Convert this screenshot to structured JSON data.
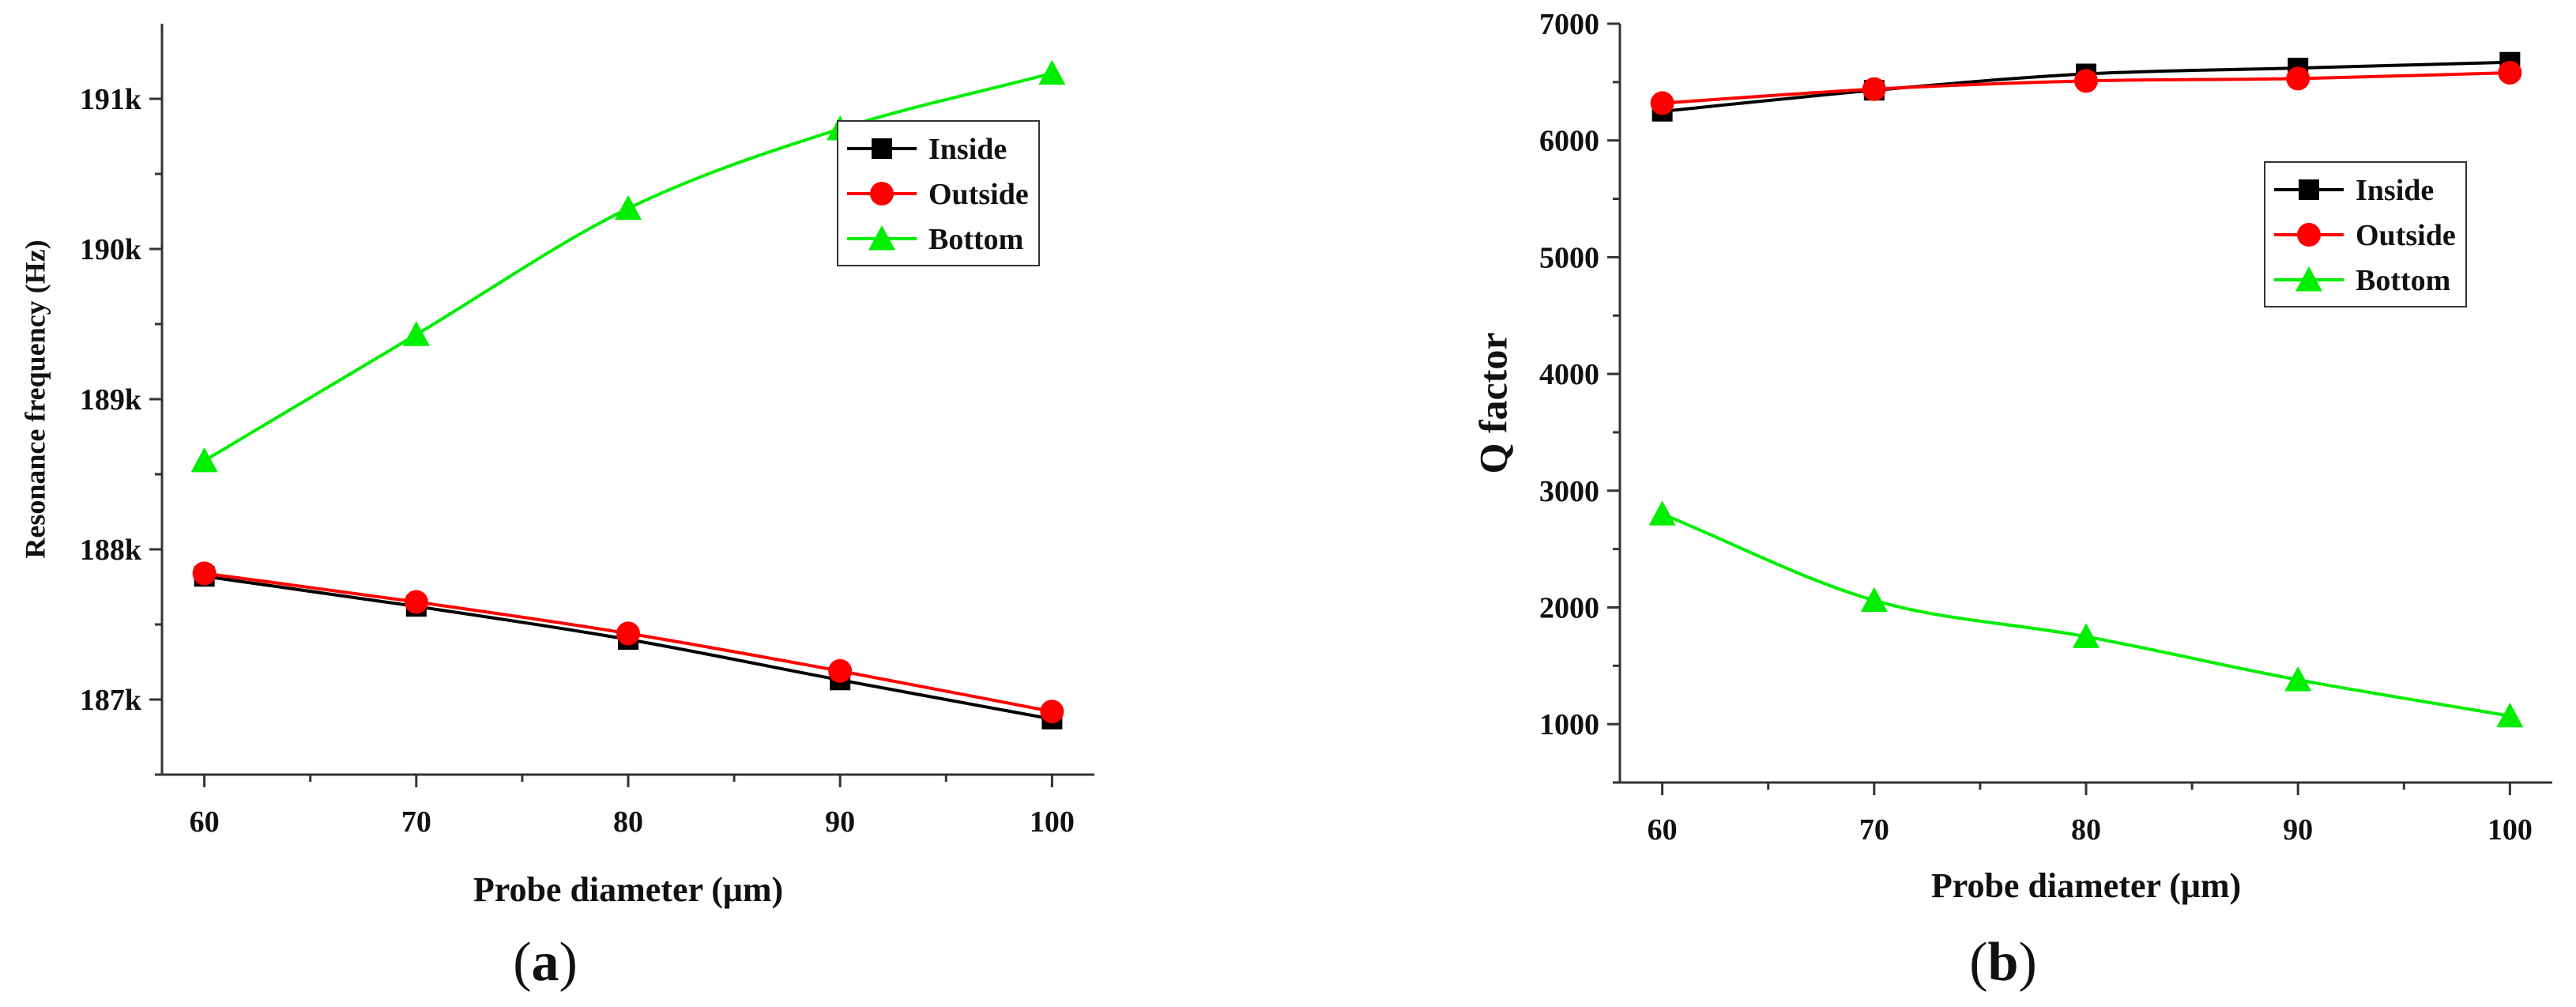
{
  "chart_data": [
    {
      "type": "line",
      "panel_label": "a",
      "xlabel": "Probe diameter (μm)",
      "ylabel": "Resonance frequency (Hz)",
      "x": [
        60,
        70,
        80,
        90,
        100
      ],
      "xlim": [
        58,
        102
      ],
      "xticks": [
        60,
        70,
        80,
        90,
        100
      ],
      "ylim": [
        186500,
        191500
      ],
      "yticks": [
        187000,
        188000,
        189000,
        190000,
        191000
      ],
      "ytick_labels": [
        "187k",
        "188k",
        "189k",
        "190k",
        "191k"
      ],
      "legend": "top-right",
      "series": [
        {
          "name": "Inside",
          "color": "#000000",
          "marker": "square",
          "values": [
            187820,
            187620,
            187400,
            187130,
            186870
          ]
        },
        {
          "name": "Outside",
          "color": "#ff0000",
          "marker": "circle",
          "values": [
            187840,
            187650,
            187440,
            187190,
            186920
          ]
        },
        {
          "name": "Bottom",
          "color": "#00ee00",
          "marker": "triangle",
          "values": [
            188590,
            189430,
            190270,
            190800,
            191170
          ]
        }
      ]
    },
    {
      "type": "line",
      "panel_label": "b",
      "xlabel": "Probe diameter (μm)",
      "ylabel": "Q factor",
      "x": [
        60,
        70,
        80,
        90,
        100
      ],
      "xlim": [
        58,
        102
      ],
      "xticks": [
        60,
        70,
        80,
        90,
        100
      ],
      "ylim": [
        500,
        7000
      ],
      "yticks": [
        1000,
        2000,
        3000,
        4000,
        5000,
        6000,
        7000
      ],
      "ytick_labels": [
        "1000",
        "2000",
        "3000",
        "4000",
        "5000",
        "6000",
        "7000"
      ],
      "legend": "top-right",
      "series": [
        {
          "name": "Inside",
          "color": "#000000",
          "marker": "square",
          "values": [
            6250,
            6430,
            6570,
            6620,
            6670
          ]
        },
        {
          "name": "Outside",
          "color": "#ff0000",
          "marker": "circle",
          "values": [
            6320,
            6440,
            6510,
            6530,
            6580
          ]
        },
        {
          "name": "Bottom",
          "color": "#00ee00",
          "marker": "triangle",
          "values": [
            2800,
            2060,
            1750,
            1380,
            1070
          ]
        }
      ]
    }
  ]
}
